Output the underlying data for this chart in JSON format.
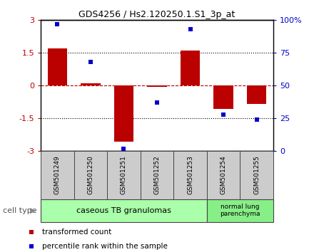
{
  "title": "GDS4256 / Hs2.120250.1.S1_3p_at",
  "samples": [
    "GSM501249",
    "GSM501250",
    "GSM501251",
    "GSM501252",
    "GSM501253",
    "GSM501254",
    "GSM501255"
  ],
  "red_values": [
    1.72,
    0.12,
    -2.55,
    -0.05,
    1.6,
    -1.05,
    -0.82
  ],
  "blue_values": [
    97,
    68,
    2,
    37,
    93,
    28,
    24
  ],
  "ylim_left": [
    -3,
    3
  ],
  "ylim_right": [
    0,
    100
  ],
  "yticks_left": [
    -3,
    -1.5,
    0,
    1.5,
    3
  ],
  "ytick_labels_left": [
    "-3",
    "-1.5",
    "0",
    "1.5",
    "3"
  ],
  "yticks_right": [
    0,
    25,
    50,
    75,
    100
  ],
  "ytick_labels_right": [
    "0",
    "25",
    "50",
    "75",
    "100%"
  ],
  "red_color": "#bb0000",
  "blue_color": "#0000cc",
  "group1_label": "caseous TB granulomas",
  "group2_label": "normal lung\nparenchyma",
  "group1_count": 5,
  "group2_count": 2,
  "group1_color": "#aaffaa",
  "group2_color": "#88ee88",
  "cell_type_label": "cell type",
  "legend_red": "transformed count",
  "legend_blue": "percentile rank within the sample",
  "bar_width": 0.6,
  "bg_color": "#ffffff",
  "sample_box_color": "#cccccc",
  "title_fontsize": 9,
  "axis_fontsize": 8,
  "sample_fontsize": 6.5,
  "group_fontsize": 8,
  "legend_fontsize": 7.5
}
